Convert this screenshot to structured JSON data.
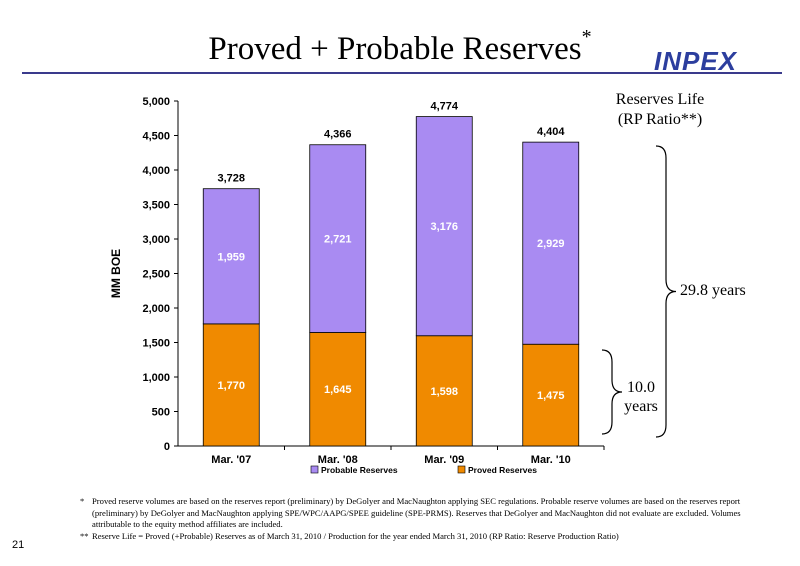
{
  "slide": {
    "title": "Proved + Probable Reserves",
    "title_mark": "*",
    "logo": "INPEX",
    "page_number": "21"
  },
  "annotations": {
    "reserves_life_line1": "Reserves Life",
    "reserves_life_line2": "(RP Ratio**)",
    "total_years": "29.8 years",
    "proved_years_line1": "10.0",
    "proved_years_line2": "years"
  },
  "footnotes": {
    "note1_mark": "*",
    "note1": "Proved  reserve volumes are based on the reserves report  (preliminary) by DeGolyer and MacNaughton applying SEC regulations. Probable  reserve volumes are based on the reserves report (preliminary) by DeGolyer and MacNaughton applying SPE/WPC/AAPG/SPEE guideline (SPE-PRMS). Reserves that DeGolyer and MacNaughton did not evaluate are excluded. Volumes attributable to the equity method affiliates are included.",
    "note2_mark": "**",
    "note2": "Reserve Life = Proved (+Probable) Reserves as of March 31, 2010 / Production for the year ended March 31, 2010  (RP Ratio: Reserve Production Ratio)"
  },
  "chart_data": {
    "type": "bar",
    "stacked": true,
    "ylabel": "MM BOE",
    "xlabel": "",
    "ylim": [
      0,
      5000
    ],
    "yticks": [
      "0",
      "500",
      "1,000",
      "1,500",
      "2,000",
      "2,500",
      "3,000",
      "3,500",
      "4,000",
      "4,500",
      "5,000"
    ],
    "ytick_values": [
      0,
      500,
      1000,
      1500,
      2000,
      2500,
      3000,
      3500,
      4000,
      4500,
      5000
    ],
    "categories": [
      "Mar. '07",
      "Mar. '08",
      "Mar. '09",
      "Mar. '10"
    ],
    "series": [
      {
        "name": "Proved Reserves",
        "values": [
          1770,
          1645,
          1598,
          1475
        ],
        "labels": [
          "1,770",
          "1,645",
          "1,598",
          "1,475"
        ],
        "color": "#f08a00"
      },
      {
        "name": "Probable Reserves",
        "values": [
          1959,
          2721,
          3176,
          2929
        ],
        "labels": [
          "1,959",
          "2,721",
          "3,176",
          "2,929"
        ],
        "color": "#a98bf2"
      }
    ],
    "totals": [
      "3,728",
      "4,366",
      "4,774",
      "4,404"
    ],
    "legend_order": [
      "Probable Reserves",
      "Proved Reserves"
    ],
    "legend_position": "bottom",
    "grid": false
  }
}
